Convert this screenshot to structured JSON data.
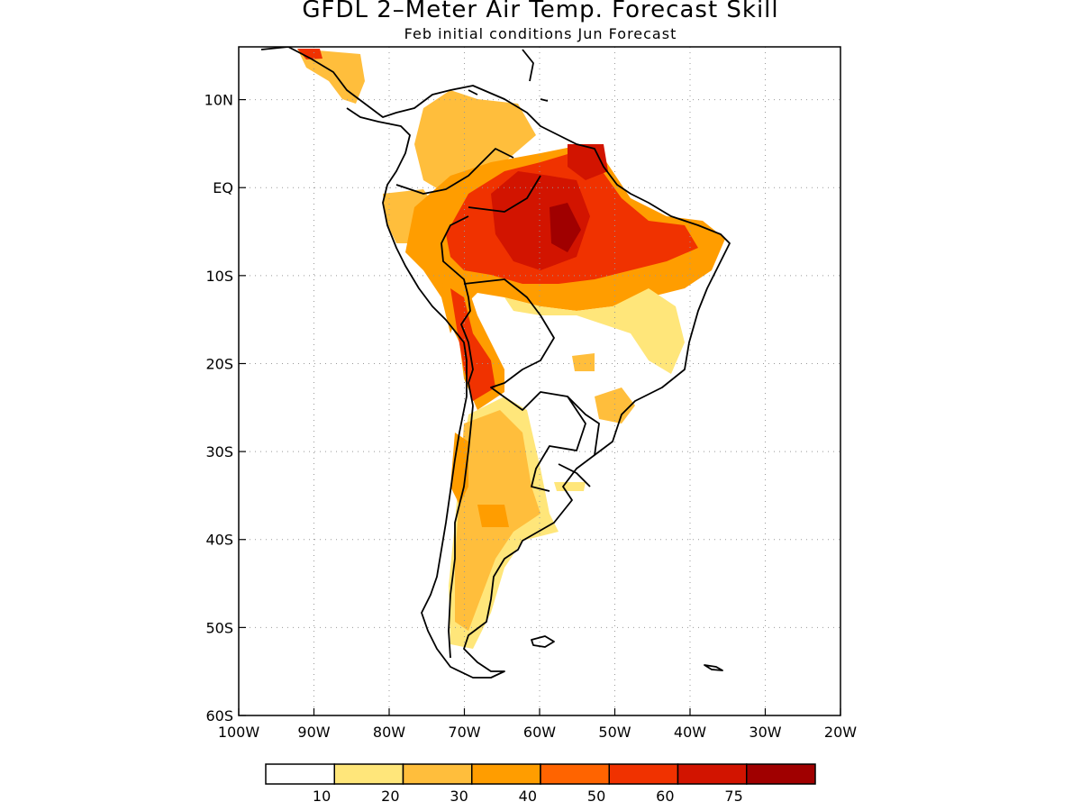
{
  "title": "GFDL 2–Meter Air Temp. Forecast Skill",
  "subtitle": "Feb initial conditions  Jun Forecast",
  "map": {
    "lon_range": [
      -100,
      -20
    ],
    "lat_range": [
      -60,
      16
    ],
    "x_ticks": [
      {
        "value": -100,
        "label": "100W"
      },
      {
        "value": -90,
        "label": "90W"
      },
      {
        "value": -80,
        "label": "80W"
      },
      {
        "value": -70,
        "label": "70W"
      },
      {
        "value": -60,
        "label": "60W"
      },
      {
        "value": -50,
        "label": "50W"
      },
      {
        "value": -40,
        "label": "40W"
      },
      {
        "value": -30,
        "label": "30W"
      },
      {
        "value": -20,
        "label": "20W"
      }
    ],
    "y_ticks": [
      {
        "value": 10,
        "label": "10N"
      },
      {
        "value": 0,
        "label": "EQ"
      },
      {
        "value": -10,
        "label": "10S"
      },
      {
        "value": -20,
        "label": "20S"
      },
      {
        "value": -30,
        "label": "30S"
      },
      {
        "value": -40,
        "label": "40S"
      },
      {
        "value": -50,
        "label": "50S"
      },
      {
        "value": -60,
        "label": "60S"
      }
    ],
    "grid": true
  },
  "legend": {
    "labels": [
      "10",
      "20",
      "30",
      "40",
      "50",
      "60",
      "75"
    ],
    "colors": [
      "#ffffff",
      "#ffe67a",
      "#ffbe3c",
      "#ff9d00",
      "#ff6400",
      "#f03200",
      "#d21400",
      "#a00000"
    ]
  }
}
